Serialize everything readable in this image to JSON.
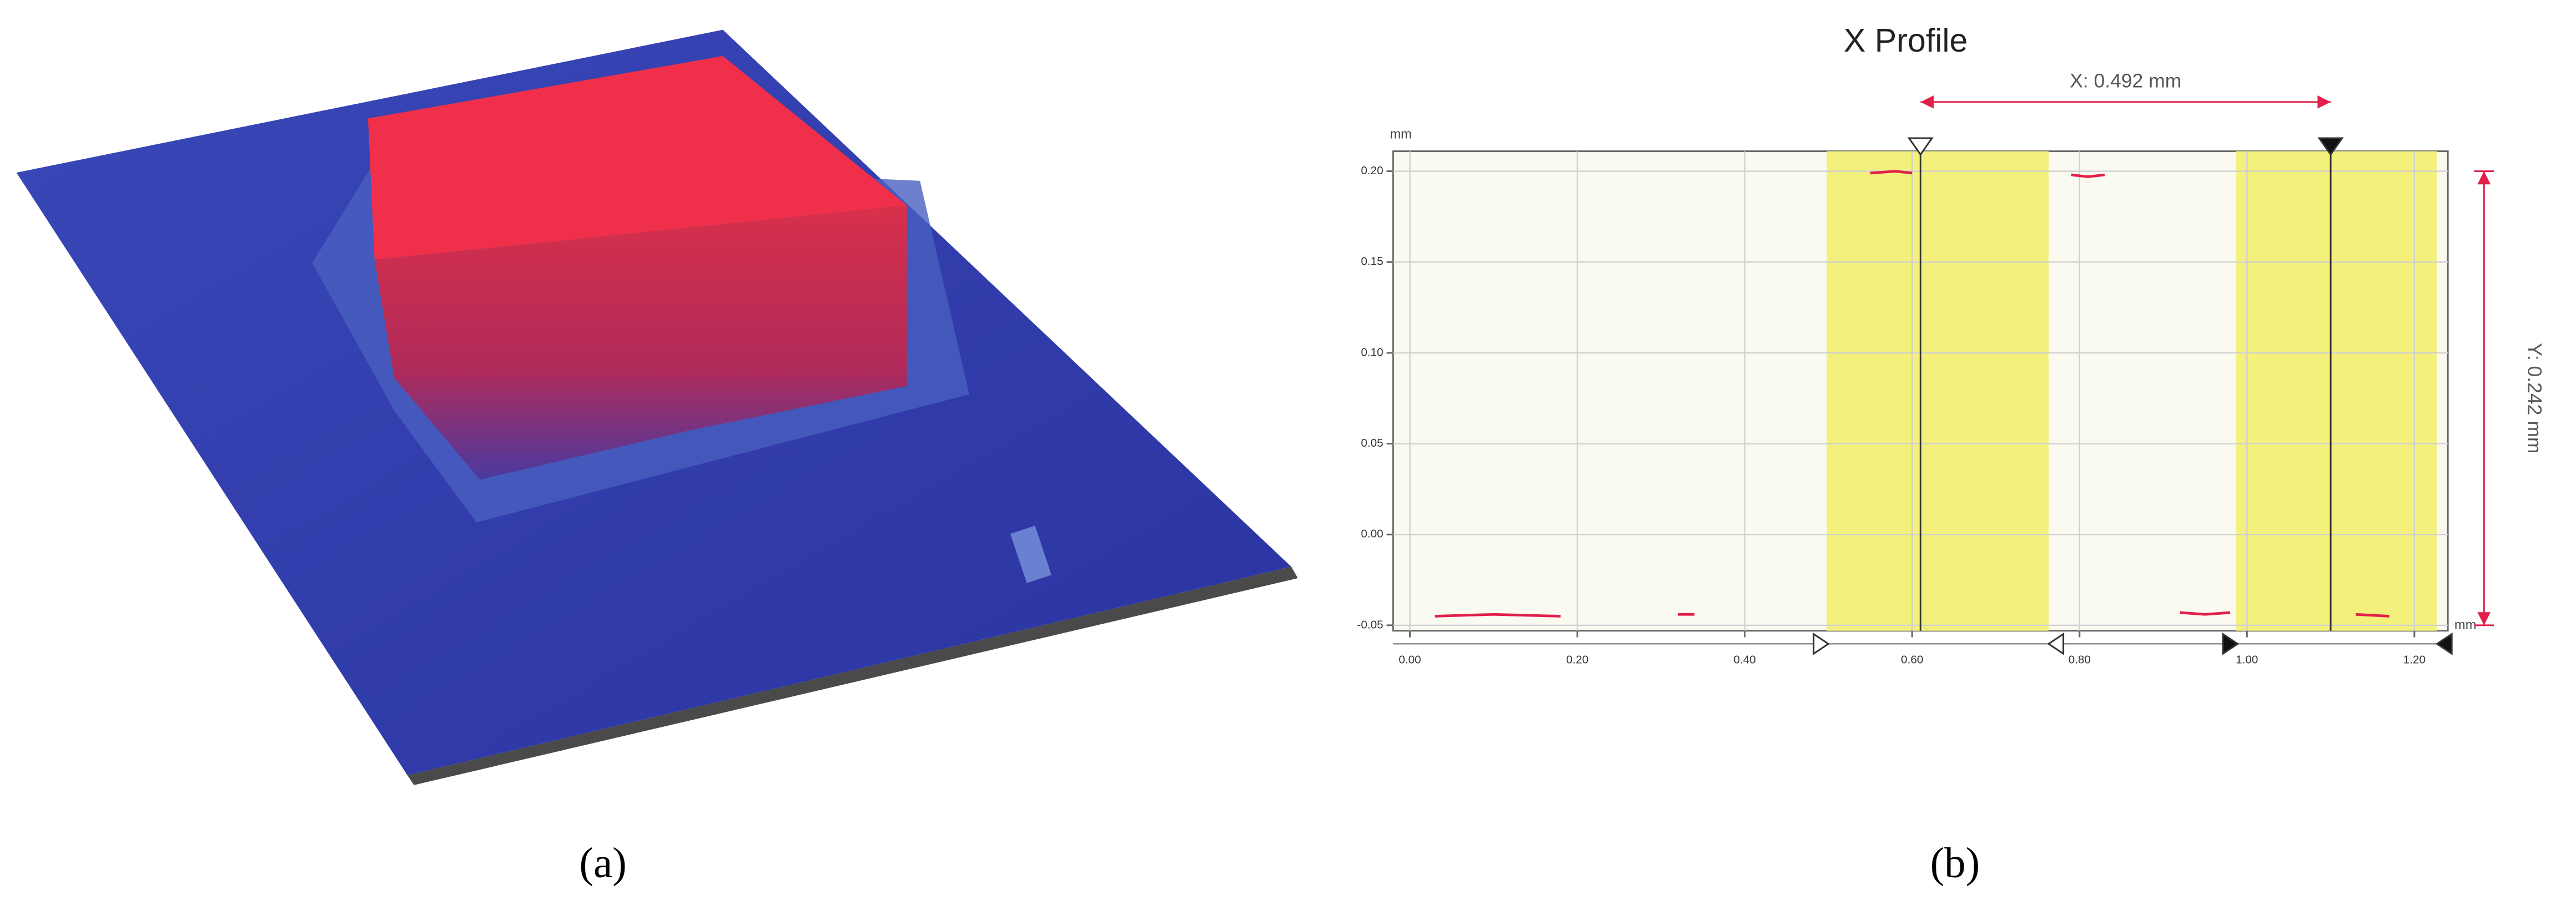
{
  "panels": {
    "a": {
      "label": "(a)"
    },
    "b": {
      "label": "(b)"
    }
  },
  "chart_data": {
    "type": "line",
    "title": "X Profile",
    "x_unit": "mm",
    "y_unit": "mm",
    "xlim": [
      -0.02,
      1.24
    ],
    "ylim": [
      -0.053,
      0.211
    ],
    "xticks": [
      {
        "value": 0,
        "label": "0.00"
      },
      {
        "value": 0.2,
        "label": "0.20"
      },
      {
        "value": 0.4,
        "label": "0.40"
      },
      {
        "value": 0.6,
        "label": "0.60"
      },
      {
        "value": 0.8,
        "label": "0.80"
      },
      {
        "value": 1,
        "label": "1.00"
      },
      {
        "value": 1.2,
        "label": "1.20"
      }
    ],
    "yticks": [
      {
        "value": -0.05,
        "label": "-0.05"
      },
      {
        "value": 0,
        "label": "0.00"
      },
      {
        "value": 0.05,
        "label": "0.05"
      },
      {
        "value": 0.1,
        "label": "0.10"
      },
      {
        "value": 0.15,
        "label": "0.15"
      },
      {
        "value": 0.2,
        "label": "0.20"
      }
    ],
    "grid": true,
    "bands": [
      [
        0.498,
        0.763
      ],
      [
        0.987,
        1.227
      ]
    ],
    "band_color": "#f4f07c",
    "cursors": [
      0.61,
      1.1
    ],
    "annotations": [
      "X: 0.492 mm",
      "Y: 0.242 mm"
    ],
    "series": [
      {
        "color": "#e0204a",
        "x": [
          0.03,
          0.1,
          0.18,
          0.19,
          0.32,
          0.34,
          0.35,
          0.55,
          0.58,
          0.6,
          0.61,
          0.79,
          0.81,
          0.83,
          0.84,
          0.92,
          0.95,
          0.98,
          0.99,
          1.13,
          1.17
        ],
        "values": [
          -0.045,
          -0.044,
          -0.045,
          null,
          -0.044,
          -0.044,
          null,
          0.199,
          0.2,
          0.199,
          null,
          0.198,
          0.197,
          0.198,
          null,
          -0.043,
          -0.044,
          -0.043,
          null,
          -0.044,
          -0.045
        ]
      }
    ]
  }
}
